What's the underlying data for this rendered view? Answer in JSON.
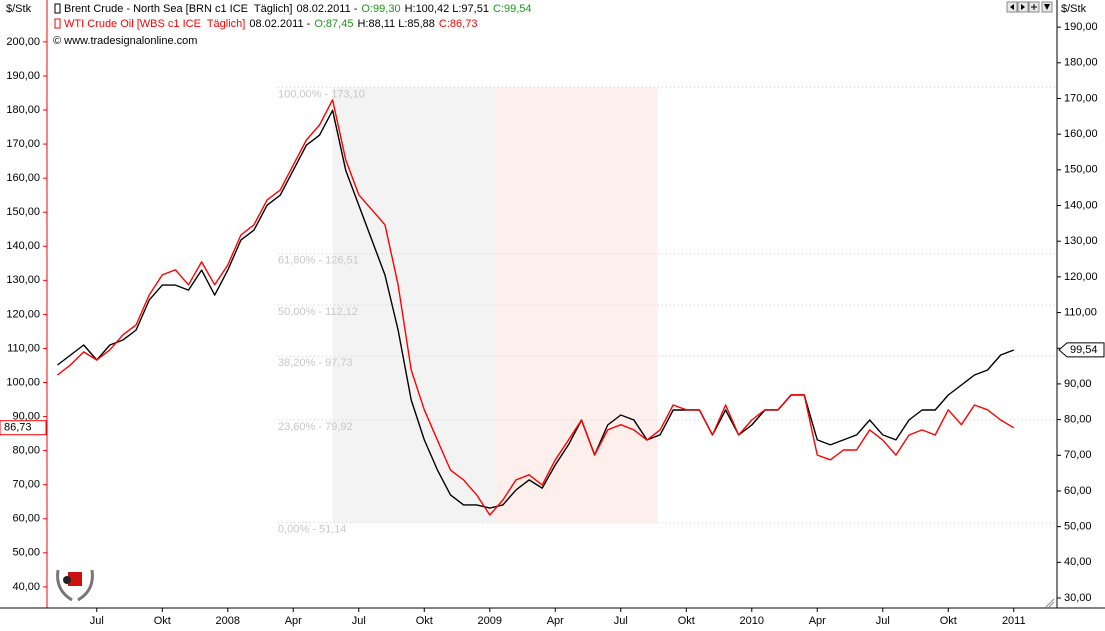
{
  "chart_data": {
    "type": "line",
    "unit_left": "$/Stk",
    "unit_right": "$/Stk",
    "copyright": "© www.tradesignalonline.com",
    "xlim": [
      2007.31,
      2011.165
    ],
    "xticks": [
      {
        "value": 2007.5,
        "label": "Jul"
      },
      {
        "value": 2007.75,
        "label": "Okt"
      },
      2008,
      {
        "value": 2008.25,
        "label": "Apr"
      },
      {
        "value": 2008.5,
        "label": "Jul"
      },
      {
        "value": 2008.75,
        "label": "Okt"
      },
      2009,
      {
        "value": 2009.25,
        "label": "Apr"
      },
      {
        "value": 2009.5,
        "label": "Jul"
      },
      {
        "value": 2009.75,
        "label": "Okt"
      },
      2010,
      {
        "value": 2010.25,
        "label": "Apr"
      },
      {
        "value": 2010.5,
        "label": "Jul"
      },
      {
        "value": 2010.75,
        "label": "Okt"
      },
      2011
    ],
    "ylim": [
      33.8,
      212.3
    ],
    "yticks": [
      {
        "value": 40,
        "label": "40,00"
      },
      {
        "value": 50,
        "label": "50,00"
      },
      {
        "value": 60,
        "label": "60,00"
      },
      {
        "value": 70,
        "label": "70,00"
      },
      {
        "value": 80,
        "label": "80,00"
      },
      {
        "value": 90,
        "label": "90,00"
      },
      {
        "value": 100,
        "label": "100,00"
      },
      {
        "value": 110,
        "label": "110,00"
      },
      {
        "value": 120,
        "label": "120,00"
      },
      {
        "value": 130,
        "label": "130,00"
      },
      {
        "value": 140,
        "label": "140,00"
      },
      {
        "value": 150,
        "label": "150,00"
      },
      {
        "value": 160,
        "label": "160,00"
      },
      {
        "value": 170,
        "label": "170,00"
      },
      {
        "value": 180,
        "label": "180,00"
      },
      {
        "value": 190,
        "label": "190,00"
      },
      {
        "value": 200,
        "label": "200,00"
      }
    ],
    "y2lim": [
      27.2,
      197.6
    ],
    "y2ticks": [
      {
        "value": 30,
        "label": "30,00"
      },
      {
        "value": 40,
        "label": "40,00"
      },
      {
        "value": 50,
        "label": "50,00"
      },
      {
        "value": 60,
        "label": "60,00"
      },
      {
        "value": 70,
        "label": "70,00"
      },
      {
        "value": 80,
        "label": "80,00"
      },
      {
        "value": 90,
        "label": "90,00"
      },
      {
        "value": 100,
        "label": "100,00"
      },
      {
        "value": 110,
        "label": "110,00"
      },
      {
        "value": 120,
        "label": "120,00"
      },
      {
        "value": 130,
        "label": "130,00"
      },
      {
        "value": 140,
        "label": "140,00"
      },
      {
        "value": 150,
        "label": "150,00"
      },
      {
        "value": 160,
        "label": "160,00"
      },
      {
        "value": 170,
        "label": "170,00"
      },
      {
        "value": 180,
        "label": "180,00"
      },
      {
        "value": 190,
        "label": "190,00"
      }
    ],
    "x": [
      2007.35,
      2007.4,
      2007.45,
      2007.5,
      2007.55,
      2007.6,
      2007.65,
      2007.7,
      2007.75,
      2007.8,
      2007.85,
      2007.9,
      2007.95,
      2008.0,
      2008.05,
      2008.1,
      2008.15,
      2008.2,
      2008.25,
      2008.3,
      2008.35,
      2008.4,
      2008.45,
      2008.5,
      2008.55,
      2008.6,
      2008.65,
      2008.7,
      2008.75,
      2008.8,
      2008.85,
      2008.9,
      2008.95,
      2009.0,
      2009.05,
      2009.1,
      2009.15,
      2009.2,
      2009.25,
      2009.3,
      2009.35,
      2009.4,
      2009.45,
      2009.5,
      2009.55,
      2009.6,
      2009.65,
      2009.7,
      2009.75,
      2009.8,
      2009.85,
      2009.9,
      2009.95,
      2010.0,
      2010.05,
      2010.1,
      2010.15,
      2010.2,
      2010.25,
      2010.3,
      2010.35,
      2010.4,
      2010.45,
      2010.5,
      2010.55,
      2010.6,
      2010.65,
      2010.7,
      2010.75,
      2010.8,
      2010.85,
      2010.9,
      2010.95,
      2011.0
    ],
    "series": [
      {
        "name": "Brent Crude - North Sea [BRN c1 ICE  Täglich]",
        "color": "#000000",
        "axis": "y2",
        "date": "08.02.2011 -",
        "open": "O:99,30",
        "high_low": "H:100,42 L:97,51",
        "close": "C:99,54",
        "open_color": "#1a9a1a",
        "close_color": "#1a9a1a",
        "last_value": {
          "value": 99.54,
          "label": "99,54"
        },
        "values": [
          95.3,
          98.1,
          100.9,
          96.7,
          100.9,
          102.3,
          105.1,
          113.5,
          117.7,
          117.7,
          116.3,
          121.9,
          114.9,
          121.9,
          130.3,
          133.1,
          140.1,
          142.9,
          149.9,
          156.9,
          159.7,
          166.7,
          149.9,
          140.1,
          130.3,
          120.5,
          105.1,
          85.5,
          74.3,
          65.9,
          58.9,
          56.1,
          56.1,
          55.2,
          56.1,
          60.3,
          63.1,
          60.8,
          67.3,
          72.9,
          79.9,
          70.1,
          78.5,
          81.3,
          79.9,
          74.3,
          75.7,
          82.7,
          82.7,
          82.7,
          75.7,
          82.7,
          75.7,
          78.5,
          82.7,
          82.7,
          86.9,
          86.9,
          74.3,
          72.9,
          74.3,
          75.7,
          79.9,
          75.7,
          74.3,
          79.9,
          82.7,
          82.7,
          86.9,
          89.7,
          92.5,
          93.9,
          98.1,
          99.5
        ]
      },
      {
        "name": "WTI Crude Oil [WBS c1 ICE  Täglich]",
        "color": "#ff0000",
        "axis": "y",
        "date": "08.02.2011 -",
        "open": "O:87,45",
        "high_low": "H:88,11 L:85,88",
        "close": "C:86,73",
        "open_color": "#1a9a1a",
        "close_color": "#ff0000",
        "last_value": {
          "value": 86.73,
          "label": "86,73"
        },
        "values": [
          102.2,
          105.2,
          109.0,
          106.6,
          109.6,
          114.0,
          116.9,
          125.7,
          131.6,
          133.1,
          128.7,
          135.4,
          128.7,
          134.5,
          143.3,
          146.3,
          153.6,
          156.5,
          163.9,
          171.2,
          175.6,
          183.0,
          165.4,
          155.1,
          150.7,
          146.3,
          128.7,
          103.7,
          92.0,
          83.1,
          74.3,
          71.4,
          67.0,
          61.1,
          65.5,
          71.4,
          72.9,
          69.9,
          77.3,
          83.1,
          89.0,
          78.7,
          86.1,
          87.6,
          86.1,
          83.1,
          86.1,
          93.4,
          92.0,
          92.0,
          84.6,
          93.4,
          84.6,
          89.0,
          92.0,
          92.0,
          96.4,
          96.4,
          78.7,
          77.3,
          80.2,
          80.2,
          86.1,
          83.1,
          78.7,
          84.6,
          86.1,
          84.6,
          92.0,
          87.6,
          93.4,
          92.0,
          89.0,
          86.7
        ]
      }
    ],
    "fibonacci": {
      "axis": "y2",
      "x_edges": [
        2008.4,
        2009.02,
        2009.64
      ],
      "colors": [
        "#f3f3f3",
        "#fdefeb"
      ],
      "levels": [
        {
          "value": 173.1,
          "label": "100,00% - 173,10"
        },
        {
          "value": 126.51,
          "label": "61,80% - 126,51"
        },
        {
          "value": 112.12,
          "label": "50,00% - 112,12"
        },
        {
          "value": 97.73,
          "label": "38,20% - 97,73"
        },
        {
          "value": 79.92,
          "label": "23,60% - 79,92"
        },
        {
          "value": 51.14,
          "label": "0,00% - 51,14"
        }
      ]
    }
  }
}
